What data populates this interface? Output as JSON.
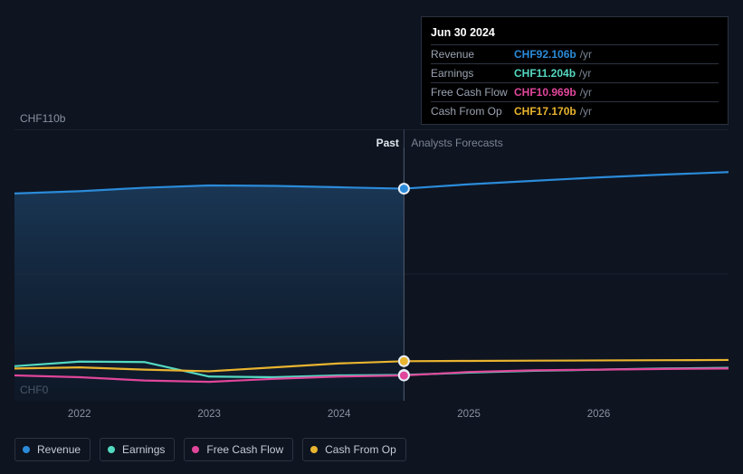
{
  "chart": {
    "type": "line",
    "background_color": "#0e1420",
    "grid_color": "#1a222f",
    "divider_color": "#3b465b",
    "text_color": "#8a93a3",
    "text_color_strong": "#e1e6ee",
    "y_axis": {
      "top_label": "CHF110b",
      "bottom_label": "CHF0",
      "ymin": 0,
      "ymax": 110
    },
    "x_axis": {
      "labels": [
        "2022",
        "2023",
        "2024",
        "2025",
        "2026"
      ],
      "range_start": 2021.5,
      "range_end": 2027.0
    },
    "divider_x": 2024.5,
    "section_labels": {
      "past": "Past",
      "forecast": "Analysts Forecasts"
    },
    "marker_x": 2024.5,
    "past_fill_gradient": {
      "top": "#1b3a5a",
      "bottom": "#0e1c2e"
    },
    "series": [
      {
        "key": "revenue",
        "name": "Revenue",
        "color": "#2b8bd9",
        "points": [
          [
            2021.5,
            90
          ],
          [
            2022.0,
            91
          ],
          [
            2022.5,
            92.5
          ],
          [
            2023.0,
            93.5
          ],
          [
            2023.5,
            93.3
          ],
          [
            2024.0,
            92.7
          ],
          [
            2024.5,
            92.1
          ],
          [
            2025.0,
            94
          ],
          [
            2025.5,
            95.5
          ],
          [
            2026.0,
            97
          ],
          [
            2026.5,
            98.2
          ],
          [
            2027.0,
            99.3
          ]
        ]
      },
      {
        "key": "earnings",
        "name": "Earnings",
        "color": "#54d9c1",
        "points": [
          [
            2021.5,
            15
          ],
          [
            2022.0,
            17
          ],
          [
            2022.5,
            16.8
          ],
          [
            2023.0,
            10.5
          ],
          [
            2023.5,
            10.2
          ],
          [
            2024.0,
            11
          ],
          [
            2024.5,
            11.2
          ],
          [
            2025.0,
            12.2
          ],
          [
            2025.5,
            13
          ],
          [
            2026.0,
            13.5
          ],
          [
            2026.5,
            14
          ],
          [
            2027.0,
            14.3
          ]
        ]
      },
      {
        "key": "fcf",
        "name": "Free Cash Flow",
        "color": "#e0469a",
        "points": [
          [
            2021.5,
            11
          ],
          [
            2022.0,
            10.2
          ],
          [
            2022.5,
            8.8
          ],
          [
            2023.0,
            8.2
          ],
          [
            2023.5,
            9.5
          ],
          [
            2024.0,
            10.5
          ],
          [
            2024.5,
            10.97
          ],
          [
            2025.0,
            12.5
          ],
          [
            2025.5,
            13.2
          ],
          [
            2026.0,
            13.5
          ],
          [
            2026.5,
            13.8
          ],
          [
            2027.0,
            14
          ]
        ]
      },
      {
        "key": "cash_from_op",
        "name": "Cash From Op",
        "color": "#e9b42f",
        "points": [
          [
            2021.5,
            14
          ],
          [
            2022.0,
            14.5
          ],
          [
            2022.5,
            13.5
          ],
          [
            2023.0,
            12.8
          ],
          [
            2023.5,
            14.5
          ],
          [
            2024.0,
            16.2
          ],
          [
            2024.5,
            17.17
          ],
          [
            2025.0,
            17.3
          ],
          [
            2025.5,
            17.4
          ],
          [
            2026.0,
            17.5
          ],
          [
            2026.5,
            17.6
          ],
          [
            2027.0,
            17.7
          ]
        ]
      }
    ]
  },
  "tooltip": {
    "date": "Jun 30 2024",
    "suffix": "/yr",
    "rows": [
      {
        "label": "Revenue",
        "value": "CHF92.106b",
        "color": "#2b8bd9"
      },
      {
        "label": "Earnings",
        "value": "CHF11.204b",
        "color": "#54d9c1"
      },
      {
        "label": "Free Cash Flow",
        "value": "CHF10.969b",
        "color": "#e0469a"
      },
      {
        "label": "Cash From Op",
        "value": "CHF17.170b",
        "color": "#e9b42f"
      }
    ]
  },
  "legend": [
    {
      "key": "revenue",
      "label": "Revenue",
      "color": "#2b8bd9"
    },
    {
      "key": "earnings",
      "label": "Earnings",
      "color": "#54d9c1"
    },
    {
      "key": "fcf",
      "label": "Free Cash Flow",
      "color": "#e0469a"
    },
    {
      "key": "cash_from_op",
      "label": "Cash From Op",
      "color": "#e9b42f"
    }
  ]
}
